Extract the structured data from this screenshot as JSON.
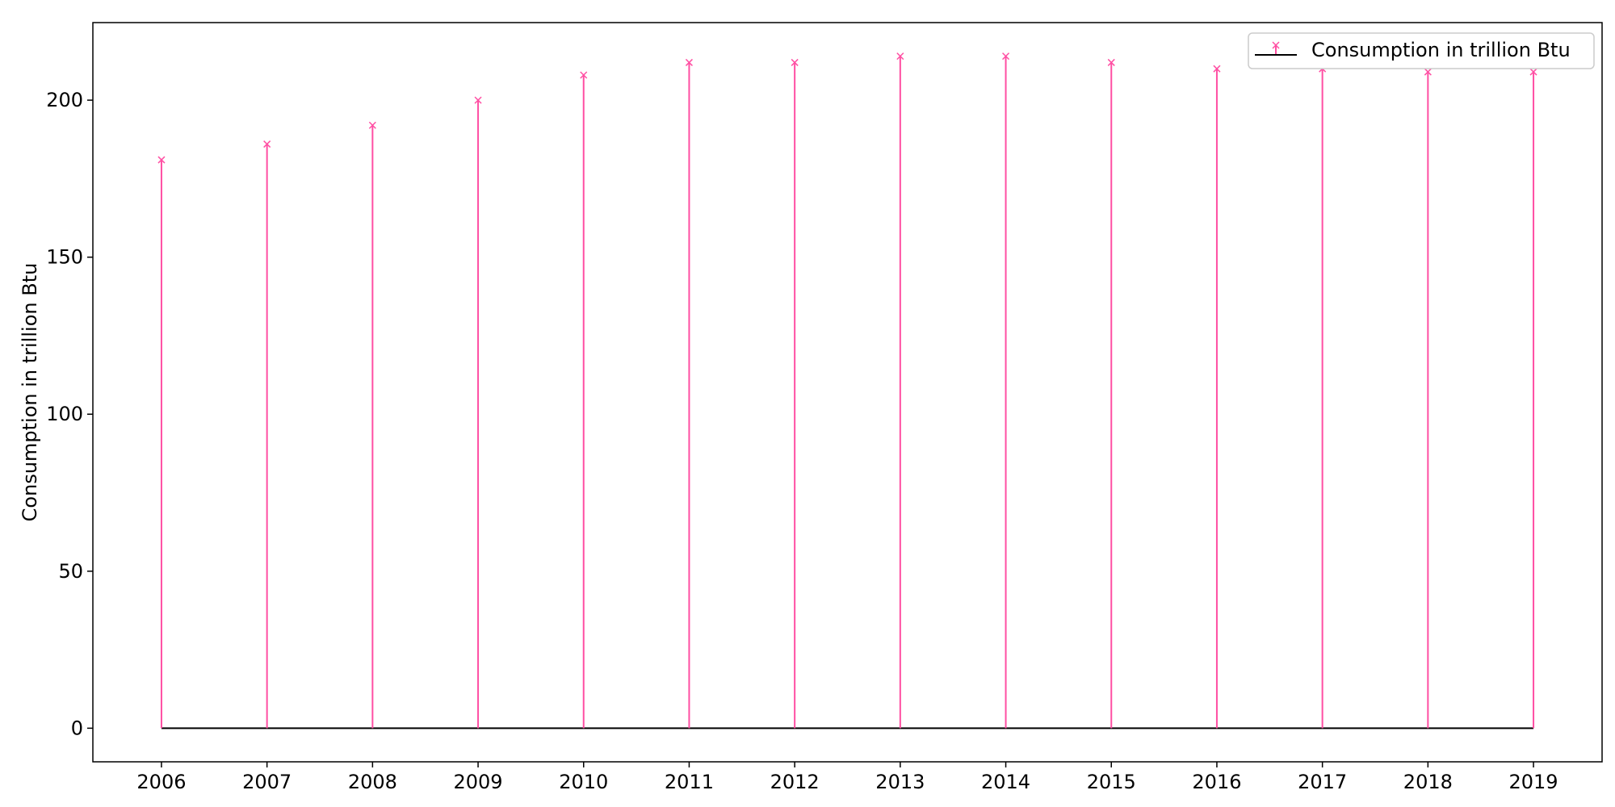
{
  "chart_data": {
    "type": "stem",
    "title": "",
    "xlabel": "",
    "ylabel": "Consumption in trillion Btu",
    "x": [
      2006,
      2007,
      2008,
      2009,
      2010,
      2011,
      2012,
      2013,
      2014,
      2015,
      2016,
      2017,
      2018,
      2019
    ],
    "series": [
      {
        "name": "Consumption in trillion Btu",
        "values": [
          181,
          186,
          192,
          200,
          208,
          212,
          212,
          214,
          214,
          212,
          210,
          210,
          209,
          209
        ]
      }
    ],
    "xlim": [
      2005.35,
      2019.65
    ],
    "ylim": [
      -10.7,
      224.7
    ],
    "xticks": [
      "2006",
      "2007",
      "2008",
      "2009",
      "2010",
      "2011",
      "2012",
      "2013",
      "2014",
      "2015",
      "2016",
      "2017",
      "2018",
      "2019"
    ],
    "yticks": [
      0,
      50,
      100,
      150,
      200
    ],
    "grid": false,
    "legend_position": "top-right",
    "colors": {
      "stem": "#ff4fa3",
      "marker": "#ff4fa3",
      "baseline": "#000000"
    }
  }
}
